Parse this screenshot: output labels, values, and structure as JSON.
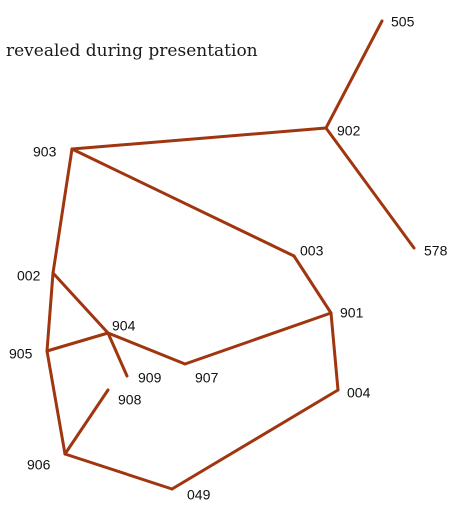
{
  "caption": "revealed during presentation",
  "edge_color": "#A0360F",
  "nodes": [
    {
      "id": "505",
      "label": "505"
    },
    {
      "id": "902",
      "label": "902"
    },
    {
      "id": "903",
      "label": "903"
    },
    {
      "id": "578",
      "label": "578"
    },
    {
      "id": "003",
      "label": "003"
    },
    {
      "id": "002",
      "label": "002"
    },
    {
      "id": "901",
      "label": "901"
    },
    {
      "id": "904",
      "label": "904"
    },
    {
      "id": "905",
      "label": "905"
    },
    {
      "id": "909",
      "label": "909"
    },
    {
      "id": "907",
      "label": "907"
    },
    {
      "id": "004",
      "label": "004"
    },
    {
      "id": "908",
      "label": "908"
    },
    {
      "id": "906",
      "label": "906"
    },
    {
      "id": "049",
      "label": "049"
    }
  ],
  "edges": [
    [
      "505",
      "902"
    ],
    [
      "902",
      "578"
    ],
    [
      "903",
      "902"
    ],
    [
      "903",
      "003"
    ],
    [
      "903",
      "002"
    ],
    [
      "003",
      "901"
    ],
    [
      "901",
      "907"
    ],
    [
      "901",
      "004"
    ],
    [
      "002",
      "905"
    ],
    [
      "002",
      "904"
    ],
    [
      "905",
      "904"
    ],
    [
      "904",
      "909"
    ],
    [
      "904",
      "907"
    ],
    [
      "905",
      "906"
    ],
    [
      "908",
      "906"
    ],
    [
      "906",
      "049"
    ],
    [
      "049",
      "004"
    ]
  ]
}
